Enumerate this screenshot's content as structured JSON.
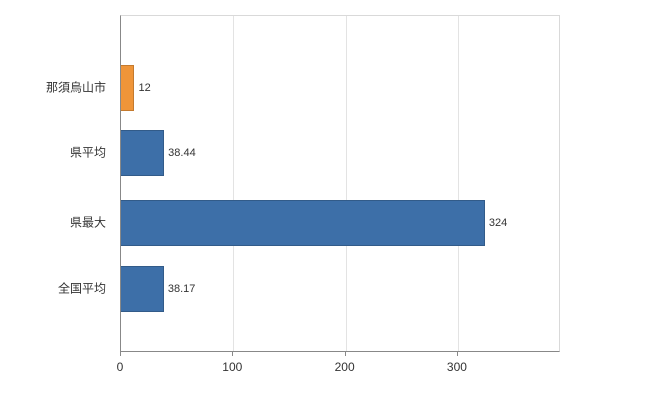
{
  "chart_data": {
    "type": "bar",
    "orientation": "horizontal",
    "title": "",
    "xlabel": "",
    "ylabel": "",
    "categories": [
      "那須烏山市",
      "県平均",
      "県最大",
      "全国平均"
    ],
    "values": [
      12,
      38.44,
      324,
      38.17
    ],
    "value_labels": [
      "12",
      "38.44",
      "324",
      "38.17"
    ],
    "series": [
      {
        "name": "値",
        "values": [
          12,
          38.44,
          324,
          38.17
        ]
      }
    ],
    "bar_colors": [
      "#ef9539",
      "#3d6fa8",
      "#3d6fa8",
      "#3d6fa8"
    ],
    "x_ticks": [
      0,
      100,
      200,
      300
    ],
    "xlim": [
      0,
      390
    ],
    "grid": true,
    "legend_position": "none"
  },
  "colors": {
    "bar_blue": "#3d6fa8",
    "bar_orange": "#ef9539",
    "axis": "#888888",
    "gridline": "#e3e3e3",
    "frame": "#d9d9d9",
    "text": "#333333"
  }
}
